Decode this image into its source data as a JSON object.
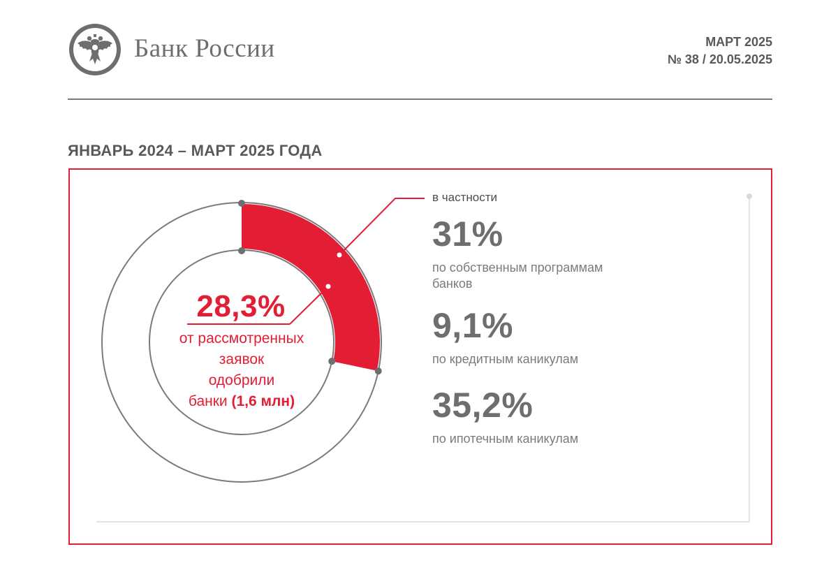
{
  "header": {
    "logo_text": "Банк России",
    "issue_month": "МАРТ 2025",
    "issue_number": "№ 38 / 20.05.2025"
  },
  "section": {
    "title": "ЯНВАРЬ 2024 – МАРТ 2025 ГОДА"
  },
  "donut": {
    "value_text": "28,3%",
    "value_percent": 28.3,
    "caption_lines": [
      "от рассмотренных",
      "заявок",
      "одобрили"
    ],
    "caption_last_prefix": "банки ",
    "caption_last_bold": "(1,6 млн)"
  },
  "breakdown": {
    "label": "в частности",
    "items": [
      {
        "value": "31%",
        "caption_lines": [
          "по собственным программам",
          "банков"
        ]
      },
      {
        "value": "9,1%",
        "caption_lines": [
          "по кредитным каникулам"
        ]
      },
      {
        "value": "35,2%",
        "caption_lines": [
          "по ипотечным каникулам"
        ]
      }
    ]
  },
  "colors": {
    "accent_red": "#e31e34",
    "text_gray": "#6d6e70",
    "line_gray": "#7a7b7d"
  }
}
